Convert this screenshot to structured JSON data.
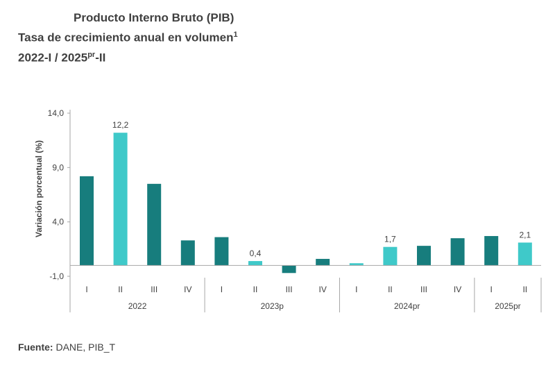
{
  "title": {
    "line1": "Producto Interno Bruto (PIB)",
    "line2": "Tasa de crecimiento anual en volumen",
    "line2_sup": "1",
    "line3_a": "2022-I / 2025",
    "line3_sup": "pr",
    "line3_b": "-II"
  },
  "source": {
    "label": "Fuente:",
    "text": " DANE, PIB_T"
  },
  "chart_data": {
    "type": "bar",
    "ylabel": "Variación porcentual (%)",
    "ylim": [
      -1.0,
      14.0
    ],
    "yticks": [
      "14,0",
      "9,0",
      "4,0",
      "-1,0"
    ],
    "ytick_values": [
      14.0,
      9.0,
      4.0,
      -1.0
    ],
    "categories": [
      "I",
      "II",
      "III",
      "IV",
      "I",
      "II",
      "III",
      "IV",
      "I",
      "II",
      "III",
      "IV",
      "I",
      "II"
    ],
    "groups": [
      {
        "label": "2022",
        "count": 4
      },
      {
        "label": "2023p",
        "count": 4
      },
      {
        "label": "2024pr",
        "count": 4
      },
      {
        "label": "2025pr",
        "count": 2
      }
    ],
    "values": [
      8.2,
      12.2,
      7.5,
      2.3,
      2.6,
      0.4,
      -0.7,
      0.6,
      0.2,
      1.7,
      1.8,
      2.5,
      2.7,
      2.1
    ],
    "highlight": [
      false,
      true,
      false,
      false,
      false,
      true,
      false,
      false,
      true,
      true,
      false,
      false,
      false,
      true
    ],
    "data_labels": [
      "",
      "12,2",
      "",
      "",
      "",
      "0,4",
      "",
      "",
      "",
      "1,7",
      "",
      "",
      "",
      "2,1"
    ],
    "colors": {
      "dark": "#177d7d",
      "light": "#3fc9c9",
      "axis": "#a6a6a6"
    }
  }
}
